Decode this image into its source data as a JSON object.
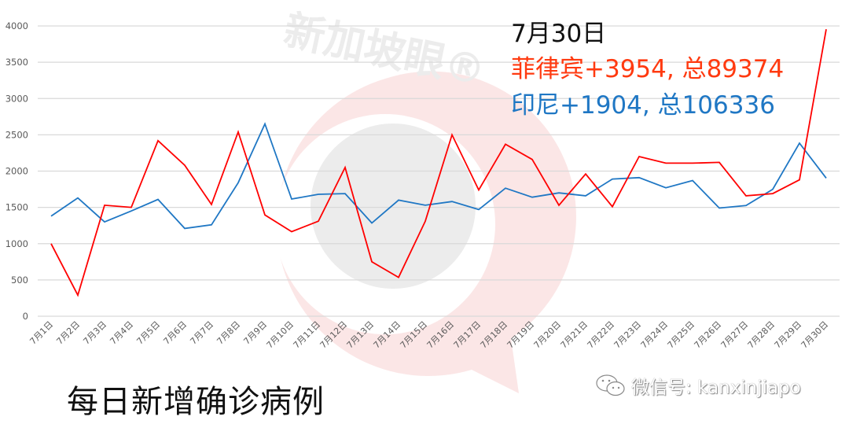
{
  "chart_data": {
    "type": "line",
    "title": "每日新增确诊病例",
    "xlabel": "",
    "ylabel": "",
    "ylim": [
      0,
      4000
    ],
    "yticks": [
      0,
      500,
      1000,
      1500,
      2000,
      2500,
      3000,
      3500,
      4000
    ],
    "grid": true,
    "legend": "none (annotation text top-right)",
    "categories": [
      "7月1日",
      "7月2日",
      "7月3日",
      "7月4日",
      "7月5日",
      "7月6日",
      "7月7日",
      "7月8日",
      "7月9日",
      "7月10日",
      "7月11日",
      "7月12日",
      "7月13日",
      "7月14日",
      "7月15日",
      "7月16日",
      "7月17日",
      "7月18日",
      "7月19日",
      "7月20日",
      "7月21日",
      "7月22日",
      "7月23日",
      "7月24日",
      "7月25日",
      "7月26日",
      "7月27日",
      "7月28日",
      "7月29日",
      "7月30日"
    ],
    "series": [
      {
        "name": "菲律宾",
        "color": "#ff0000",
        "values": [
          1000,
          290,
          1530,
          1500,
          2420,
          2080,
          1540,
          2540,
          1395,
          1165,
          1310,
          2050,
          750,
          535,
          1310,
          2500,
          1740,
          2370,
          2160,
          1530,
          1960,
          1510,
          2200,
          2110,
          2110,
          2120,
          1660,
          1690,
          1880,
          3954
        ]
      },
      {
        "name": "印尼",
        "color": "#1f77c4",
        "values": [
          1380,
          1630,
          1300,
          1450,
          1610,
          1210,
          1260,
          1840,
          2650,
          1615,
          1680,
          1690,
          1285,
          1600,
          1530,
          1580,
          1470,
          1765,
          1640,
          1700,
          1660,
          1890,
          1910,
          1770,
          1870,
          1490,
          1525,
          1750,
          2385,
          1904
        ]
      }
    ],
    "annotations": [
      {
        "text": "7月30日"
      },
      {
        "text": "菲律宾+3954, 总89374"
      },
      {
        "text": "印尼+1904, 总106336"
      }
    ]
  },
  "annotation": {
    "date": "7月30日",
    "philippines": "菲律宾+3954, 总89374",
    "indonesia": "印尼+1904, 总106336"
  },
  "title": "每日新增确诊病例",
  "watermark": {
    "brand": "新加坡眼®",
    "wechat": "微信号: kanxinjiapo"
  },
  "colors": {
    "philippines": "#ff0000",
    "philippines_text": "#ff3a10",
    "indonesia": "#1f77c4",
    "grid": "#d9d9d9",
    "axis_text": "#595959"
  }
}
